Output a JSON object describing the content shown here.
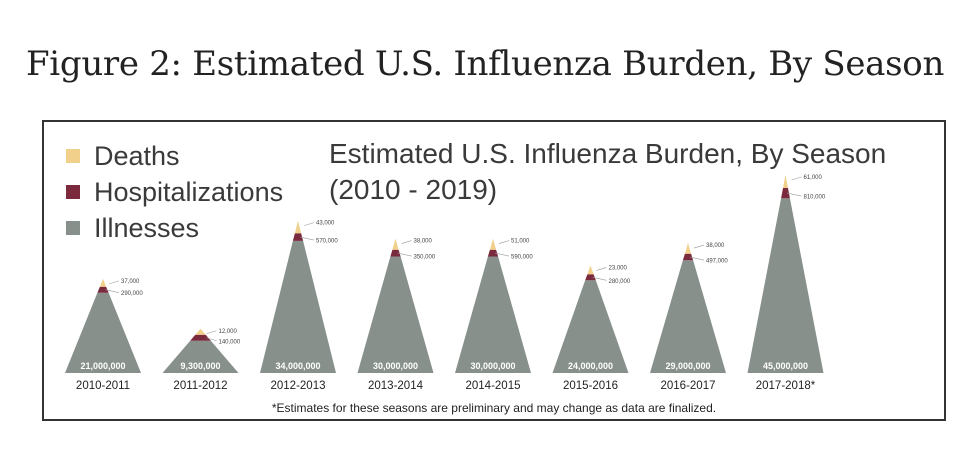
{
  "page": {
    "heading": "Figure 2: Estimated U.S. Influenza Burden, By Season"
  },
  "legend": [
    {
      "label": "Deaths",
      "color": "#f0d08a"
    },
    {
      "label": "Hospitalizations",
      "color": "#7a2a3c"
    },
    {
      "label": "Illnesses",
      "color": "#87908b"
    }
  ],
  "chart_title": {
    "line1": "Estimated U.S. Influenza Burden, By Season",
    "line2": "(2010 - 2019)"
  },
  "footnote": "*Estimates for these seasons are preliminary and may change as data are finalized.",
  "chart_data": {
    "type": "bar",
    "title": "Estimated U.S. Influenza Burden, By Season (2010 - 2019)",
    "categories": [
      "2010-2011",
      "2011-2012",
      "2012-2013",
      "2013-2014",
      "2014-2015",
      "2015-2016",
      "2016-2017",
      "2017-2018*"
    ],
    "series": [
      {
        "name": "Illnesses",
        "values": [
          21000000,
          9300000,
          34000000,
          30000000,
          30000000,
          24000000,
          29000000,
          45000000
        ],
        "labels": [
          "21,000,000",
          "9,300,000",
          "34,000,000",
          "30,000,000",
          "30,000,000",
          "24,000,000",
          "29,000,000",
          "45,000,000"
        ]
      },
      {
        "name": "Hospitalizations",
        "values": [
          290000,
          140000,
          570000,
          350000,
          590000,
          280000,
          497000,
          810000
        ],
        "labels": [
          "290,000",
          "140,000",
          "570,000",
          "350,000",
          "590,000",
          "280,000",
          "497,000",
          "810,000"
        ]
      },
      {
        "name": "Deaths",
        "values": [
          37000,
          12000,
          43000,
          38000,
          51000,
          23000,
          38000,
          61000
        ],
        "labels": [
          "37,000",
          "12,000",
          "43,000",
          "38,000",
          "51,000",
          "23,000",
          "38,000",
          "61,000"
        ]
      }
    ],
    "colors": {
      "illnesses": "#87908b",
      "hospitalizations": "#7a2a3c",
      "deaths": "#f0d08a",
      "label_text": "#ffffff",
      "leader": "#9a9a9a"
    },
    "legend_position": "top-left",
    "grid": false
  }
}
